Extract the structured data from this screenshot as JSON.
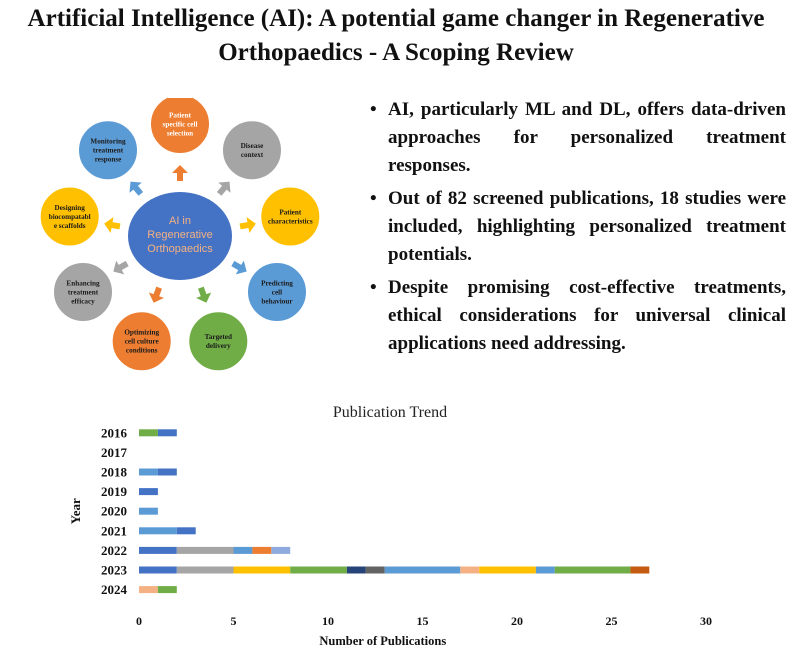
{
  "title": {
    "line1": "Artificial Intelligence (AI): A potential game changer in Regenerative",
    "line2": "Orthopaedics - A Scoping  Review"
  },
  "diagram": {
    "center": [
      "AI in",
      "Regenerative",
      "Orthopaedics"
    ],
    "nodes": [
      {
        "lines": [
          "Patient",
          "specific cell",
          "selection"
        ],
        "color": "#ed7d31",
        "text": "light"
      },
      {
        "lines": [
          "Disease",
          "context"
        ],
        "color": "#a5a5a5",
        "text": "dark"
      },
      {
        "lines": [
          "Patient",
          "characteristics"
        ],
        "color": "#ffc000",
        "text": "dark"
      },
      {
        "lines": [
          "Predicting",
          "cell",
          "behaviour"
        ],
        "color": "#5b9bd5",
        "text": "dark"
      },
      {
        "lines": [
          "Targeted",
          "delivery"
        ],
        "color": "#70ad47",
        "text": "dark"
      },
      {
        "lines": [
          "Optimizing",
          "cell culture",
          "conditions"
        ],
        "color": "#ed7d31",
        "text": "dark"
      },
      {
        "lines": [
          "Enhancing",
          "treatment",
          "efficacy"
        ],
        "color": "#a5a5a5",
        "text": "dark"
      },
      {
        "lines": [
          "Designing",
          "biocompatabl",
          "e scaffolds"
        ],
        "color": "#ffc000",
        "text": "dark"
      },
      {
        "lines": [
          "Monitoring",
          "treatment",
          "response"
        ],
        "color": "#5b9bd5",
        "text": "dark"
      }
    ],
    "center_color": "#4472c4",
    "center_text_color": "#f4b183"
  },
  "bullets": [
    "AI, particularly ML and DL, offers data-driven approaches for personalized treatment responses.",
    "Out of 82 screened publications, 18 studies were included, highlighting personalized treatment potentials.",
    "Despite promising cost-effective treatments, ethical considerations for universal clinical applications need addressing."
  ],
  "bullet_symbol": "•",
  "chart_data": {
    "type": "bar",
    "orientation": "horizontal",
    "stacked": true,
    "title": "Publication Trend",
    "xlabel": "Number of Publications",
    "ylabel": "Year",
    "xlim": [
      0,
      30
    ],
    "xticks": [
      0,
      5,
      10,
      15,
      20,
      25,
      30
    ],
    "categories": [
      "2016",
      "2017",
      "2018",
      "2019",
      "2020",
      "2021",
      "2022",
      "2023",
      "2024"
    ],
    "rows": [
      {
        "year": "2016",
        "segments": [
          {
            "value": 1,
            "color": "#70ad47"
          },
          {
            "value": 1,
            "color": "#4472c4"
          }
        ]
      },
      {
        "year": "2017",
        "segments": []
      },
      {
        "year": "2018",
        "segments": [
          {
            "value": 1,
            "color": "#5b9bd5"
          },
          {
            "value": 1,
            "color": "#4472c4"
          }
        ]
      },
      {
        "year": "2019",
        "segments": [
          {
            "value": 1,
            "color": "#4472c4"
          }
        ]
      },
      {
        "year": "2020",
        "segments": [
          {
            "value": 1,
            "color": "#5b9bd5"
          }
        ]
      },
      {
        "year": "2021",
        "segments": [
          {
            "value": 2,
            "color": "#5b9bd5"
          },
          {
            "value": 1,
            "color": "#4472c4"
          }
        ]
      },
      {
        "year": "2022",
        "segments": [
          {
            "value": 2,
            "color": "#4472c4"
          },
          {
            "value": 3,
            "color": "#a5a5a5"
          },
          {
            "value": 1,
            "color": "#5b9bd5"
          },
          {
            "value": 1,
            "color": "#ed7d31"
          },
          {
            "value": 1,
            "color": "#8faadc"
          }
        ]
      },
      {
        "year": "2023",
        "segments": [
          {
            "value": 2,
            "color": "#4472c4"
          },
          {
            "value": 3,
            "color": "#a5a5a5"
          },
          {
            "value": 3,
            "color": "#ffc000"
          },
          {
            "value": 3,
            "color": "#70ad47"
          },
          {
            "value": 1,
            "color": "#264478"
          },
          {
            "value": 1,
            "color": "#636363"
          },
          {
            "value": 4,
            "color": "#5b9bd5"
          },
          {
            "value": 1,
            "color": "#f4b183"
          },
          {
            "value": 3,
            "color": "#ffc000"
          },
          {
            "value": 1,
            "color": "#5b9bd5"
          },
          {
            "value": 4,
            "color": "#70ad47"
          },
          {
            "value": 1,
            "color": "#c55a11"
          }
        ]
      },
      {
        "year": "2024",
        "segments": [
          {
            "value": 1,
            "color": "#f4b183"
          },
          {
            "value": 1,
            "color": "#70ad47"
          }
        ]
      }
    ]
  }
}
